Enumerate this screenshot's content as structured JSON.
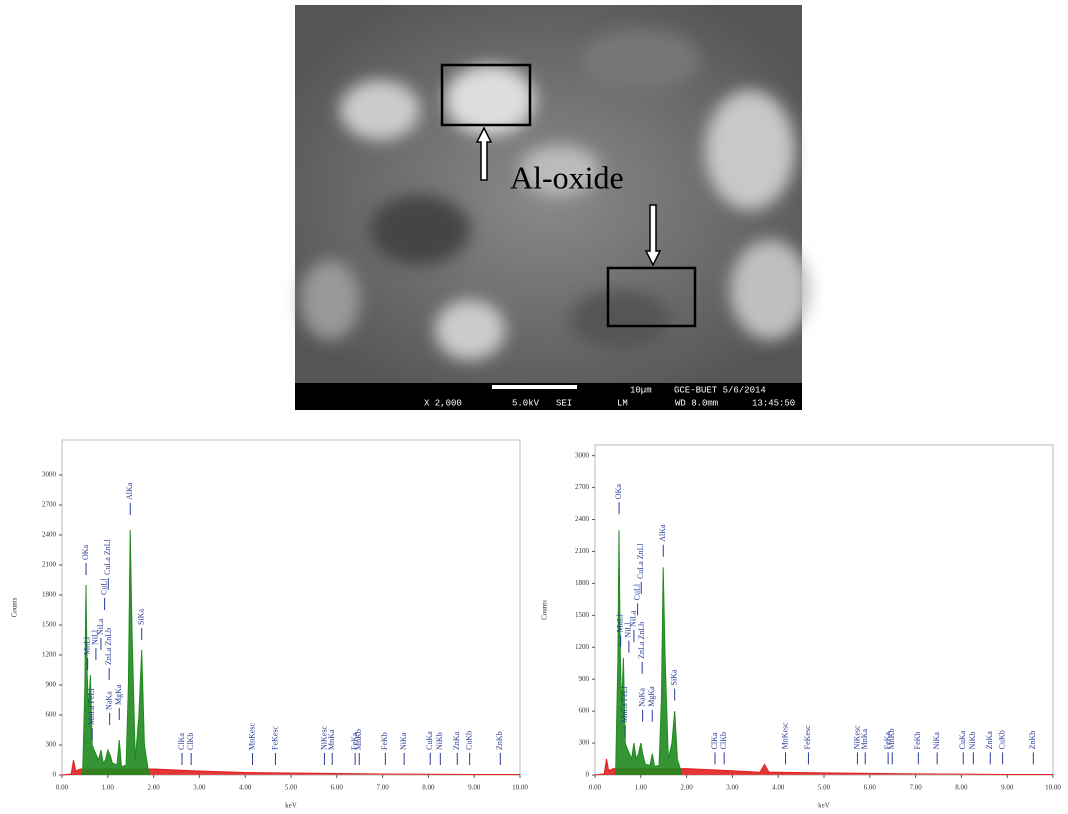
{
  "image": {
    "annotation": "Al-oxide",
    "scale_bar": "10µm",
    "lab_date": "GCE-BUET 5/6/2014",
    "magnification": "X 2,000",
    "voltage": "5.0kV",
    "detector": "SEI",
    "mode": "LM",
    "working_distance": "WD 8.0mm",
    "time": "13:45:50"
  },
  "chart_data": [
    {
      "type": "area",
      "x_label": "keV",
      "y_label": "Counts",
      "xlim": [
        0,
        10
      ],
      "ylim": [
        0,
        3350
      ],
      "xticks": [
        {
          "value": 0,
          "label": "0.00"
        },
        {
          "value": 1,
          "label": "1.00"
        },
        {
          "value": 2,
          "label": "2.00"
        },
        {
          "value": 3,
          "label": "3.00"
        },
        {
          "value": 4,
          "label": "4.00"
        },
        {
          "value": 5,
          "label": "5.00"
        },
        {
          "value": 6,
          "label": "6.00"
        },
        {
          "value": 7,
          "label": "7.00"
        },
        {
          "value": 8,
          "label": "8.00"
        },
        {
          "value": 9,
          "label": "9.00"
        },
        {
          "value": 10,
          "label": "10.00"
        }
      ],
      "yticks": [
        0,
        300,
        600,
        900,
        1200,
        1500,
        1800,
        2100,
        2400,
        2700,
        3000
      ],
      "series": [
        {
          "color": "#e02020",
          "x": [
            0,
            0.2,
            0.25,
            0.3,
            0.4,
            2,
            3,
            4,
            5,
            6,
            7,
            8,
            9,
            10
          ],
          "values": [
            0,
            10,
            150,
            40,
            60,
            60,
            40,
            25,
            20,
            15,
            10,
            8,
            5,
            5
          ]
        },
        {
          "color": "#1f8a1f",
          "x": [
            0.45,
            0.5,
            0.525,
            0.55,
            0.58,
            0.62,
            0.66,
            0.7,
            0.75,
            0.8,
            0.85,
            0.9,
            0.95,
            1.0,
            1.05,
            1.1,
            1.2,
            1.25,
            1.3,
            1.4,
            1.45,
            1.49,
            1.53,
            1.6,
            1.68,
            1.74,
            1.8,
            1.9
          ],
          "values": [
            0,
            900,
            1900,
            1000,
            650,
            1000,
            300,
            250,
            200,
            150,
            250,
            120,
            150,
            250,
            200,
            120,
            100,
            350,
            80,
            100,
            900,
            2450,
            1400,
            150,
            600,
            1250,
            300,
            0
          ]
        }
      ],
      "annotations": [
        {
          "text": "OKa",
          "x": 0.525,
          "y": 2000
        },
        {
          "text": "MnLl",
          "x": 0.56,
          "y": 1050
        },
        {
          "text": "MnLa FeLl",
          "x": 0.66,
          "y": 350
        },
        {
          "text": "NiLl",
          "x": 0.74,
          "y": 1150
        },
        {
          "text": "NiLa",
          "x": 0.85,
          "y": 1250
        },
        {
          "text": "CuLl",
          "x": 0.93,
          "y": 1650
        },
        {
          "text": "CuLa ZnLl",
          "x": 1.01,
          "y": 1850
        },
        {
          "text": "ZnLa ZnLb",
          "x": 1.03,
          "y": 950
        },
        {
          "text": "NaKa",
          "x": 1.04,
          "y": 500
        },
        {
          "text": "MgKa",
          "x": 1.25,
          "y": 550
        },
        {
          "text": "AlKa",
          "x": 1.49,
          "y": 2600
        },
        {
          "text": "SiKa",
          "x": 1.74,
          "y": 1350
        },
        {
          "text": "ClKa",
          "x": 2.62,
          "y": 100
        },
        {
          "text": "ClKb",
          "x": 2.82,
          "y": 100
        },
        {
          "text": "MnKesc",
          "x": 4.16,
          "y": 100
        },
        {
          "text": "FeKesc",
          "x": 4.66,
          "y": 100
        },
        {
          "text": "NiKesc",
          "x": 5.73,
          "y": 100
        },
        {
          "text": "MnKa",
          "x": 5.9,
          "y": 100
        },
        {
          "text": "FeKa",
          "x": 6.4,
          "y": 100
        },
        {
          "text": "MnKb",
          "x": 6.49,
          "y": 100
        },
        {
          "text": "FeKb",
          "x": 7.06,
          "y": 100
        },
        {
          "text": "NiKa",
          "x": 7.47,
          "y": 100
        },
        {
          "text": "CuKa",
          "x": 8.04,
          "y": 100
        },
        {
          "text": "NiKb",
          "x": 8.26,
          "y": 100
        },
        {
          "text": "ZnKa",
          "x": 8.63,
          "y": 100
        },
        {
          "text": "CuKb",
          "x": 8.9,
          "y": 100
        },
        {
          "text": "ZnKb",
          "x": 9.57,
          "y": 100
        }
      ]
    },
    {
      "type": "area",
      "x_label": "keV",
      "y_label": "Counts",
      "xlim": [
        0,
        10
      ],
      "ylim": [
        0,
        3100
      ],
      "xticks": [
        {
          "value": 0,
          "label": "0.00"
        },
        {
          "value": 1,
          "label": "1.00"
        },
        {
          "value": 2,
          "label": "2.00"
        },
        {
          "value": 3,
          "label": "3.00"
        },
        {
          "value": 4,
          "label": "4.00"
        },
        {
          "value": 5,
          "label": "5.00"
        },
        {
          "value": 6,
          "label": "6.00"
        },
        {
          "value": 7,
          "label": "7.00"
        },
        {
          "value": 8,
          "label": "8.00"
        },
        {
          "value": 9,
          "label": "9.00"
        },
        {
          "value": 10,
          "label": "10.00"
        }
      ],
      "yticks": [
        0,
        300,
        600,
        900,
        1200,
        1500,
        1800,
        2100,
        2400,
        2700,
        3000
      ],
      "series": [
        {
          "color": "#e02020",
          "x": [
            0,
            0.2,
            0.25,
            0.3,
            0.4,
            2,
            3,
            3.6,
            3.7,
            3.8,
            4,
            5,
            6,
            7,
            8,
            9,
            10
          ],
          "values": [
            0,
            10,
            150,
            40,
            60,
            60,
            40,
            25,
            100,
            25,
            25,
            20,
            15,
            10,
            8,
            5,
            5
          ]
        },
        {
          "color": "#1f8a1f",
          "x": [
            0.45,
            0.5,
            0.525,
            0.55,
            0.58,
            0.62,
            0.66,
            0.7,
            0.75,
            0.8,
            0.85,
            0.9,
            0.95,
            1.0,
            1.05,
            1.1,
            1.2,
            1.25,
            1.3,
            1.4,
            1.45,
            1.49,
            1.53,
            1.6,
            1.68,
            1.74,
            1.8,
            1.9
          ],
          "values": [
            0,
            1100,
            2300,
            1200,
            600,
            1100,
            300,
            250,
            200,
            150,
            300,
            150,
            200,
            300,
            180,
            100,
            90,
            200,
            80,
            90,
            700,
            1950,
            1100,
            150,
            300,
            600,
            150,
            0
          ]
        }
      ],
      "annotations": [
        {
          "text": "OKa",
          "x": 0.525,
          "y": 2450
        },
        {
          "text": "MnLl",
          "x": 0.56,
          "y": 1200
        },
        {
          "text": "MnLa FeLl",
          "x": 0.66,
          "y": 350
        },
        {
          "text": "NiLl",
          "x": 0.74,
          "y": 1150
        },
        {
          "text": "NiLa",
          "x": 0.85,
          "y": 1250
        },
        {
          "text": "CuLl",
          "x": 0.93,
          "y": 1500
        },
        {
          "text": "CuLa ZnLl",
          "x": 1.01,
          "y": 1700
        },
        {
          "text": "ZnLa ZnLb",
          "x": 1.03,
          "y": 950
        },
        {
          "text": "NaKa",
          "x": 1.04,
          "y": 500
        },
        {
          "text": "MgKa",
          "x": 1.25,
          "y": 500
        },
        {
          "text": "AlKa",
          "x": 1.49,
          "y": 2050
        },
        {
          "text": "SiKa",
          "x": 1.74,
          "y": 700
        },
        {
          "text": "ClKa",
          "x": 2.62,
          "y": 100
        },
        {
          "text": "ClKb",
          "x": 2.82,
          "y": 100
        },
        {
          "text": "MnKesc",
          "x": 4.16,
          "y": 100
        },
        {
          "text": "FeKesc",
          "x": 4.66,
          "y": 100
        },
        {
          "text": "NiKesc",
          "x": 5.73,
          "y": 100
        },
        {
          "text": "MnKa",
          "x": 5.9,
          "y": 100
        },
        {
          "text": "FeKa",
          "x": 6.4,
          "y": 100
        },
        {
          "text": "MnKb",
          "x": 6.49,
          "y": 100
        },
        {
          "text": "FeKb",
          "x": 7.06,
          "y": 100
        },
        {
          "text": "NiKa",
          "x": 7.47,
          "y": 100
        },
        {
          "text": "CuKa",
          "x": 8.04,
          "y": 100
        },
        {
          "text": "NiKb",
          "x": 8.26,
          "y": 100
        },
        {
          "text": "ZnKa",
          "x": 8.63,
          "y": 100
        },
        {
          "text": "CuKb",
          "x": 8.9,
          "y": 100
        },
        {
          "text": "ZnKb",
          "x": 9.57,
          "y": 100
        }
      ]
    }
  ]
}
